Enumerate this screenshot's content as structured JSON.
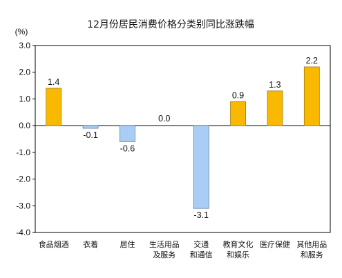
{
  "chart_data": {
    "type": "bar",
    "title": "12月份居民消费价格分类别同比涨跌幅",
    "unit_label": "(%)",
    "categories": [
      [
        "食品烟酒"
      ],
      [
        "衣着"
      ],
      [
        "居住"
      ],
      [
        "生活用品",
        "及服务"
      ],
      [
        "交通",
        "和通信"
      ],
      [
        "教育文化",
        "和娱乐"
      ],
      [
        "医疗保健"
      ],
      [
        "其他用品",
        "和服务"
      ]
    ],
    "values": [
      1.4,
      -0.1,
      -0.6,
      0.0,
      -3.1,
      0.9,
      1.3,
      2.2
    ],
    "value_labels": [
      "1.4",
      "-0.1",
      "-0.6",
      "0.0",
      "-3.1",
      "0.9",
      "1.3",
      "2.2"
    ],
    "ylim": [
      -4.0,
      3.0
    ],
    "yticks": [
      3.0,
      2.0,
      1.0,
      0.0,
      -1.0,
      -2.0,
      -3.0,
      -4.0
    ],
    "ytick_labels": [
      "3.0",
      "2.0",
      "1.0",
      "0.0",
      "-1.0",
      "-2.0",
      "-3.0",
      "-4.0"
    ],
    "grid": false,
    "legend": "none",
    "colors": {
      "positive_fill": "#f9b900",
      "positive_stroke": "#a07a10",
      "negative_fill": "#a9cdf5",
      "negative_stroke": "#5b7fa8",
      "axis": "#000000"
    }
  }
}
